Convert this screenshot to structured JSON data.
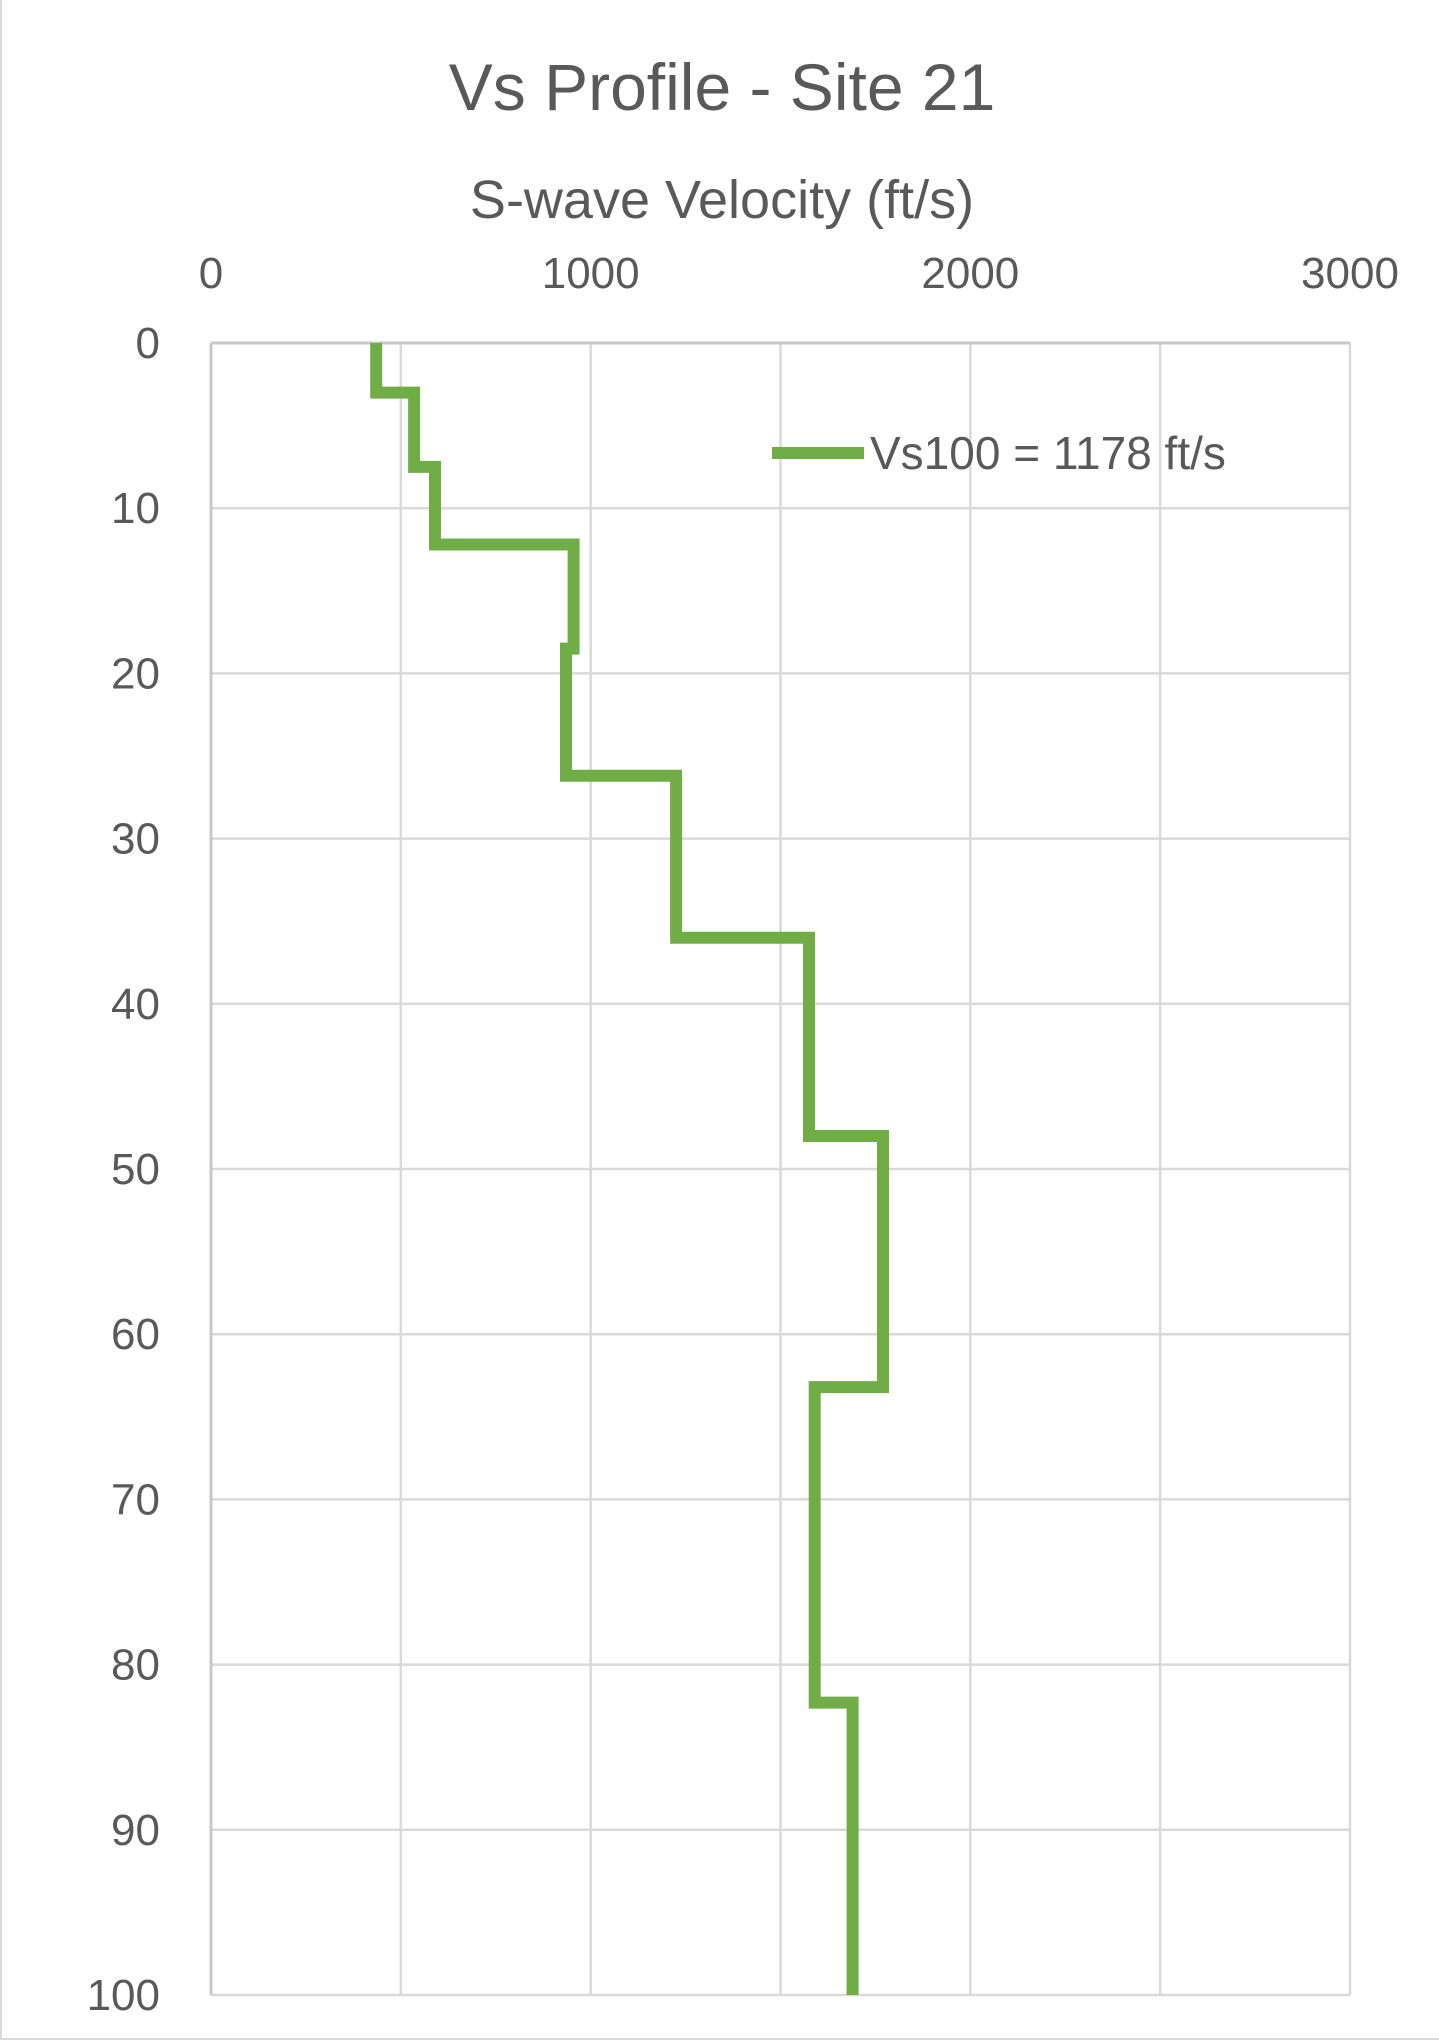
{
  "chart_data": {
    "type": "line",
    "title": "Vs Profile - Site 21",
    "xlabel": "S-wave Velocity (ft/s)",
    "ylabel": "",
    "xlim": [
      0,
      3000
    ],
    "ylim": [
      0,
      100
    ],
    "y_inverted": true,
    "x_axis_position": "top",
    "x_ticks": [
      "0",
      "1000",
      "2000",
      "3000"
    ],
    "y_ticks": [
      "0",
      "10",
      "20",
      "30",
      "40",
      "50",
      "60",
      "70",
      "80",
      "90",
      "100"
    ],
    "grid": true,
    "legend_position": "top-right",
    "series": [
      {
        "name": "Vs100 = 1178 ft/s",
        "color": "#70ad47",
        "step_profile": true,
        "x": [
          435,
          435,
          535,
          535,
          590,
          590,
          955,
          955,
          935,
          935,
          1225,
          1225,
          1575,
          1575,
          1770,
          1770,
          1590,
          1590,
          1690,
          1690
        ],
        "y": [
          0,
          3,
          3,
          7.5,
          7.5,
          12.2,
          12.2,
          18.5,
          18.5,
          26.2,
          26.2,
          36,
          36,
          48,
          48,
          63.2,
          63.2,
          82.3,
          82.3,
          100
        ]
      }
    ]
  }
}
